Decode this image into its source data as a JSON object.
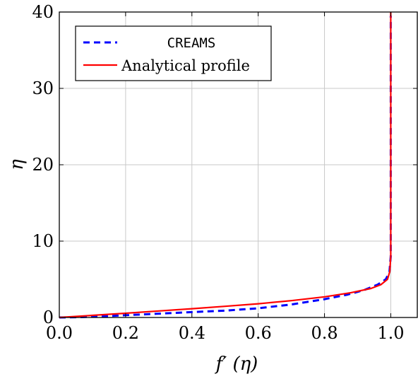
{
  "chart_data": {
    "type": "line",
    "xlabel": "f′ (η)",
    "ylabel": "η",
    "xlim": [
      0.0,
      1.08
    ],
    "ylim": [
      0,
      40
    ],
    "xticks": [
      {
        "value": 0.0,
        "label": "0.0"
      },
      {
        "value": 0.2,
        "label": "0.2"
      },
      {
        "value": 0.4,
        "label": "0.4"
      },
      {
        "value": 0.6,
        "label": "0.6"
      },
      {
        "value": 0.8,
        "label": "0.8"
      },
      {
        "value": 1.0,
        "label": "1.0"
      }
    ],
    "yticks": [
      {
        "value": 0,
        "label": "0"
      },
      {
        "value": 10,
        "label": "10"
      },
      {
        "value": 20,
        "label": "20"
      },
      {
        "value": 30,
        "label": "30"
      },
      {
        "value": 40,
        "label": "40"
      }
    ],
    "grid": true,
    "legend_position": "top-left",
    "series": [
      {
        "name": "CREAMS",
        "color": "#0000ff",
        "style": "dashed",
        "x": [
          0.0,
          0.06,
          0.13,
          0.2,
          0.3,
          0.4,
          0.5,
          0.6,
          0.7,
          0.8,
          0.87,
          0.92,
          0.96,
          0.985,
          0.996,
          1.0,
          1.0
        ],
        "y": [
          0.0,
          0.05,
          0.15,
          0.3,
          0.5,
          0.7,
          0.9,
          1.2,
          1.7,
          2.4,
          3.0,
          3.6,
          4.3,
          5.0,
          6.0,
          8.0,
          39.5
        ]
      },
      {
        "name": "Analytical profile",
        "color": "#ff0000",
        "style": "solid",
        "x": [
          0.0,
          0.1,
          0.2,
          0.3,
          0.4,
          0.5,
          0.6,
          0.7,
          0.8,
          0.88,
          0.94,
          0.97,
          0.99,
          0.997,
          1.0,
          1.0
        ],
        "y": [
          0.0,
          0.28,
          0.56,
          0.85,
          1.15,
          1.46,
          1.8,
          2.2,
          2.7,
          3.25,
          3.8,
          4.3,
          5.0,
          6.0,
          8.0,
          40.0
        ]
      }
    ]
  }
}
